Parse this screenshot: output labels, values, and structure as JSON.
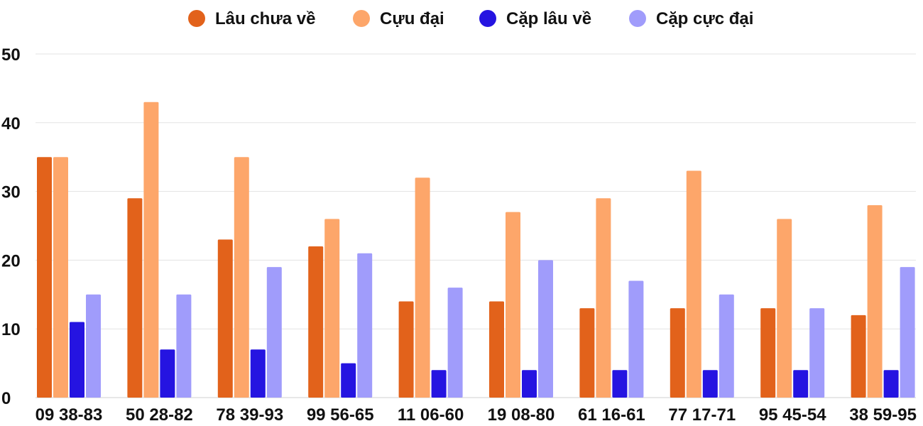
{
  "chart_data": {
    "type": "bar",
    "title": "",
    "xlabel": "",
    "ylabel": "",
    "ylim": [
      0,
      50
    ],
    "yticks": [
      0,
      10,
      20,
      30,
      40,
      50
    ],
    "grid": true,
    "legend_position": "top-center",
    "categories": [
      "09 38-83",
      "50 28-82",
      "78 39-93",
      "99 56-65",
      "11 06-60",
      "19 08-80",
      "61 16-61",
      "77 17-71",
      "95 45-54",
      "38 59-95"
    ],
    "series": [
      {
        "name": "Lâu chưa về",
        "color": "#e2621b",
        "values": [
          35,
          29,
          23,
          22,
          14,
          14,
          13,
          13,
          13,
          12
        ]
      },
      {
        "name": "Cựu đại",
        "color": "#fda66a",
        "values": [
          35,
          43,
          35,
          26,
          32,
          27,
          29,
          33,
          26,
          28
        ]
      },
      {
        "name": "Cặp lâu về",
        "color": "#2514e1",
        "values": [
          11,
          7,
          7,
          5,
          4,
          4,
          4,
          4,
          4,
          4
        ]
      },
      {
        "name": "Cặp cực đại",
        "color": "#a09cfb",
        "values": [
          15,
          15,
          19,
          21,
          16,
          20,
          17,
          15,
          13,
          19
        ]
      }
    ]
  }
}
